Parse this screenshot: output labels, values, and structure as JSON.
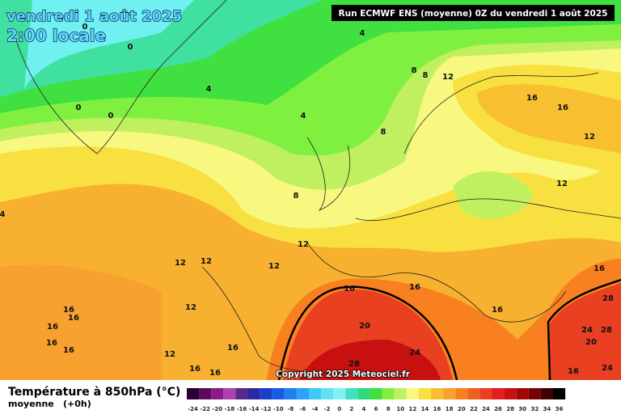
{
  "header": {
    "date": "vendredi 1 août 2025",
    "time": "2:00 locale",
    "run": "Run ECMWF ENS (moyenne) 0Z du vendredi 1 août 2025"
  },
  "copyright": "Copyright 2025 Meteociel.fr",
  "legend": {
    "title": "Température à 850hPa (°C)",
    "subtitle": "moyenne",
    "lead": "(+0h)",
    "ticks": [
      -24,
      -22,
      -20,
      -18,
      -16,
      -14,
      -12,
      -10,
      -8,
      -6,
      -4,
      -2,
      0,
      2,
      4,
      6,
      8,
      10,
      12,
      14,
      16,
      18,
      20,
      22,
      24,
      26,
      28,
      30,
      32,
      34,
      36
    ],
    "colors": [
      "#2a0030",
      "#5a0a5a",
      "#8a1a8a",
      "#b040b0",
      "#5a2a8a",
      "#2a2aa0",
      "#1a40c8",
      "#1a5ae0",
      "#2080f0",
      "#30a0f8",
      "#40c8f8",
      "#60e0f0",
      "#80f0f0",
      "#40e0c0",
      "#30d880",
      "#40e040",
      "#80f040",
      "#c0f060",
      "#f8f880",
      "#f8e040",
      "#f8c030",
      "#f8a030",
      "#f88020",
      "#f06020",
      "#e84020",
      "#e02020",
      "#c81010",
      "#a00808",
      "#780000",
      "#400000",
      "#000000"
    ]
  },
  "map": {
    "contour_labels": [
      "0",
      "0",
      "0",
      "0",
      "4",
      "4",
      "4",
      "4",
      "8",
      "8",
      "12",
      "16",
      "16",
      "12",
      "8",
      "8",
      "12",
      "12",
      "12",
      "12",
      "12",
      "16",
      "16",
      "16",
      "16",
      "16",
      "12",
      "16",
      "16",
      "20",
      "28",
      "28",
      "24",
      "20",
      "24",
      "28",
      "16",
      "16",
      "12",
      "16",
      "16",
      "16",
      "16",
      "24"
    ]
  }
}
